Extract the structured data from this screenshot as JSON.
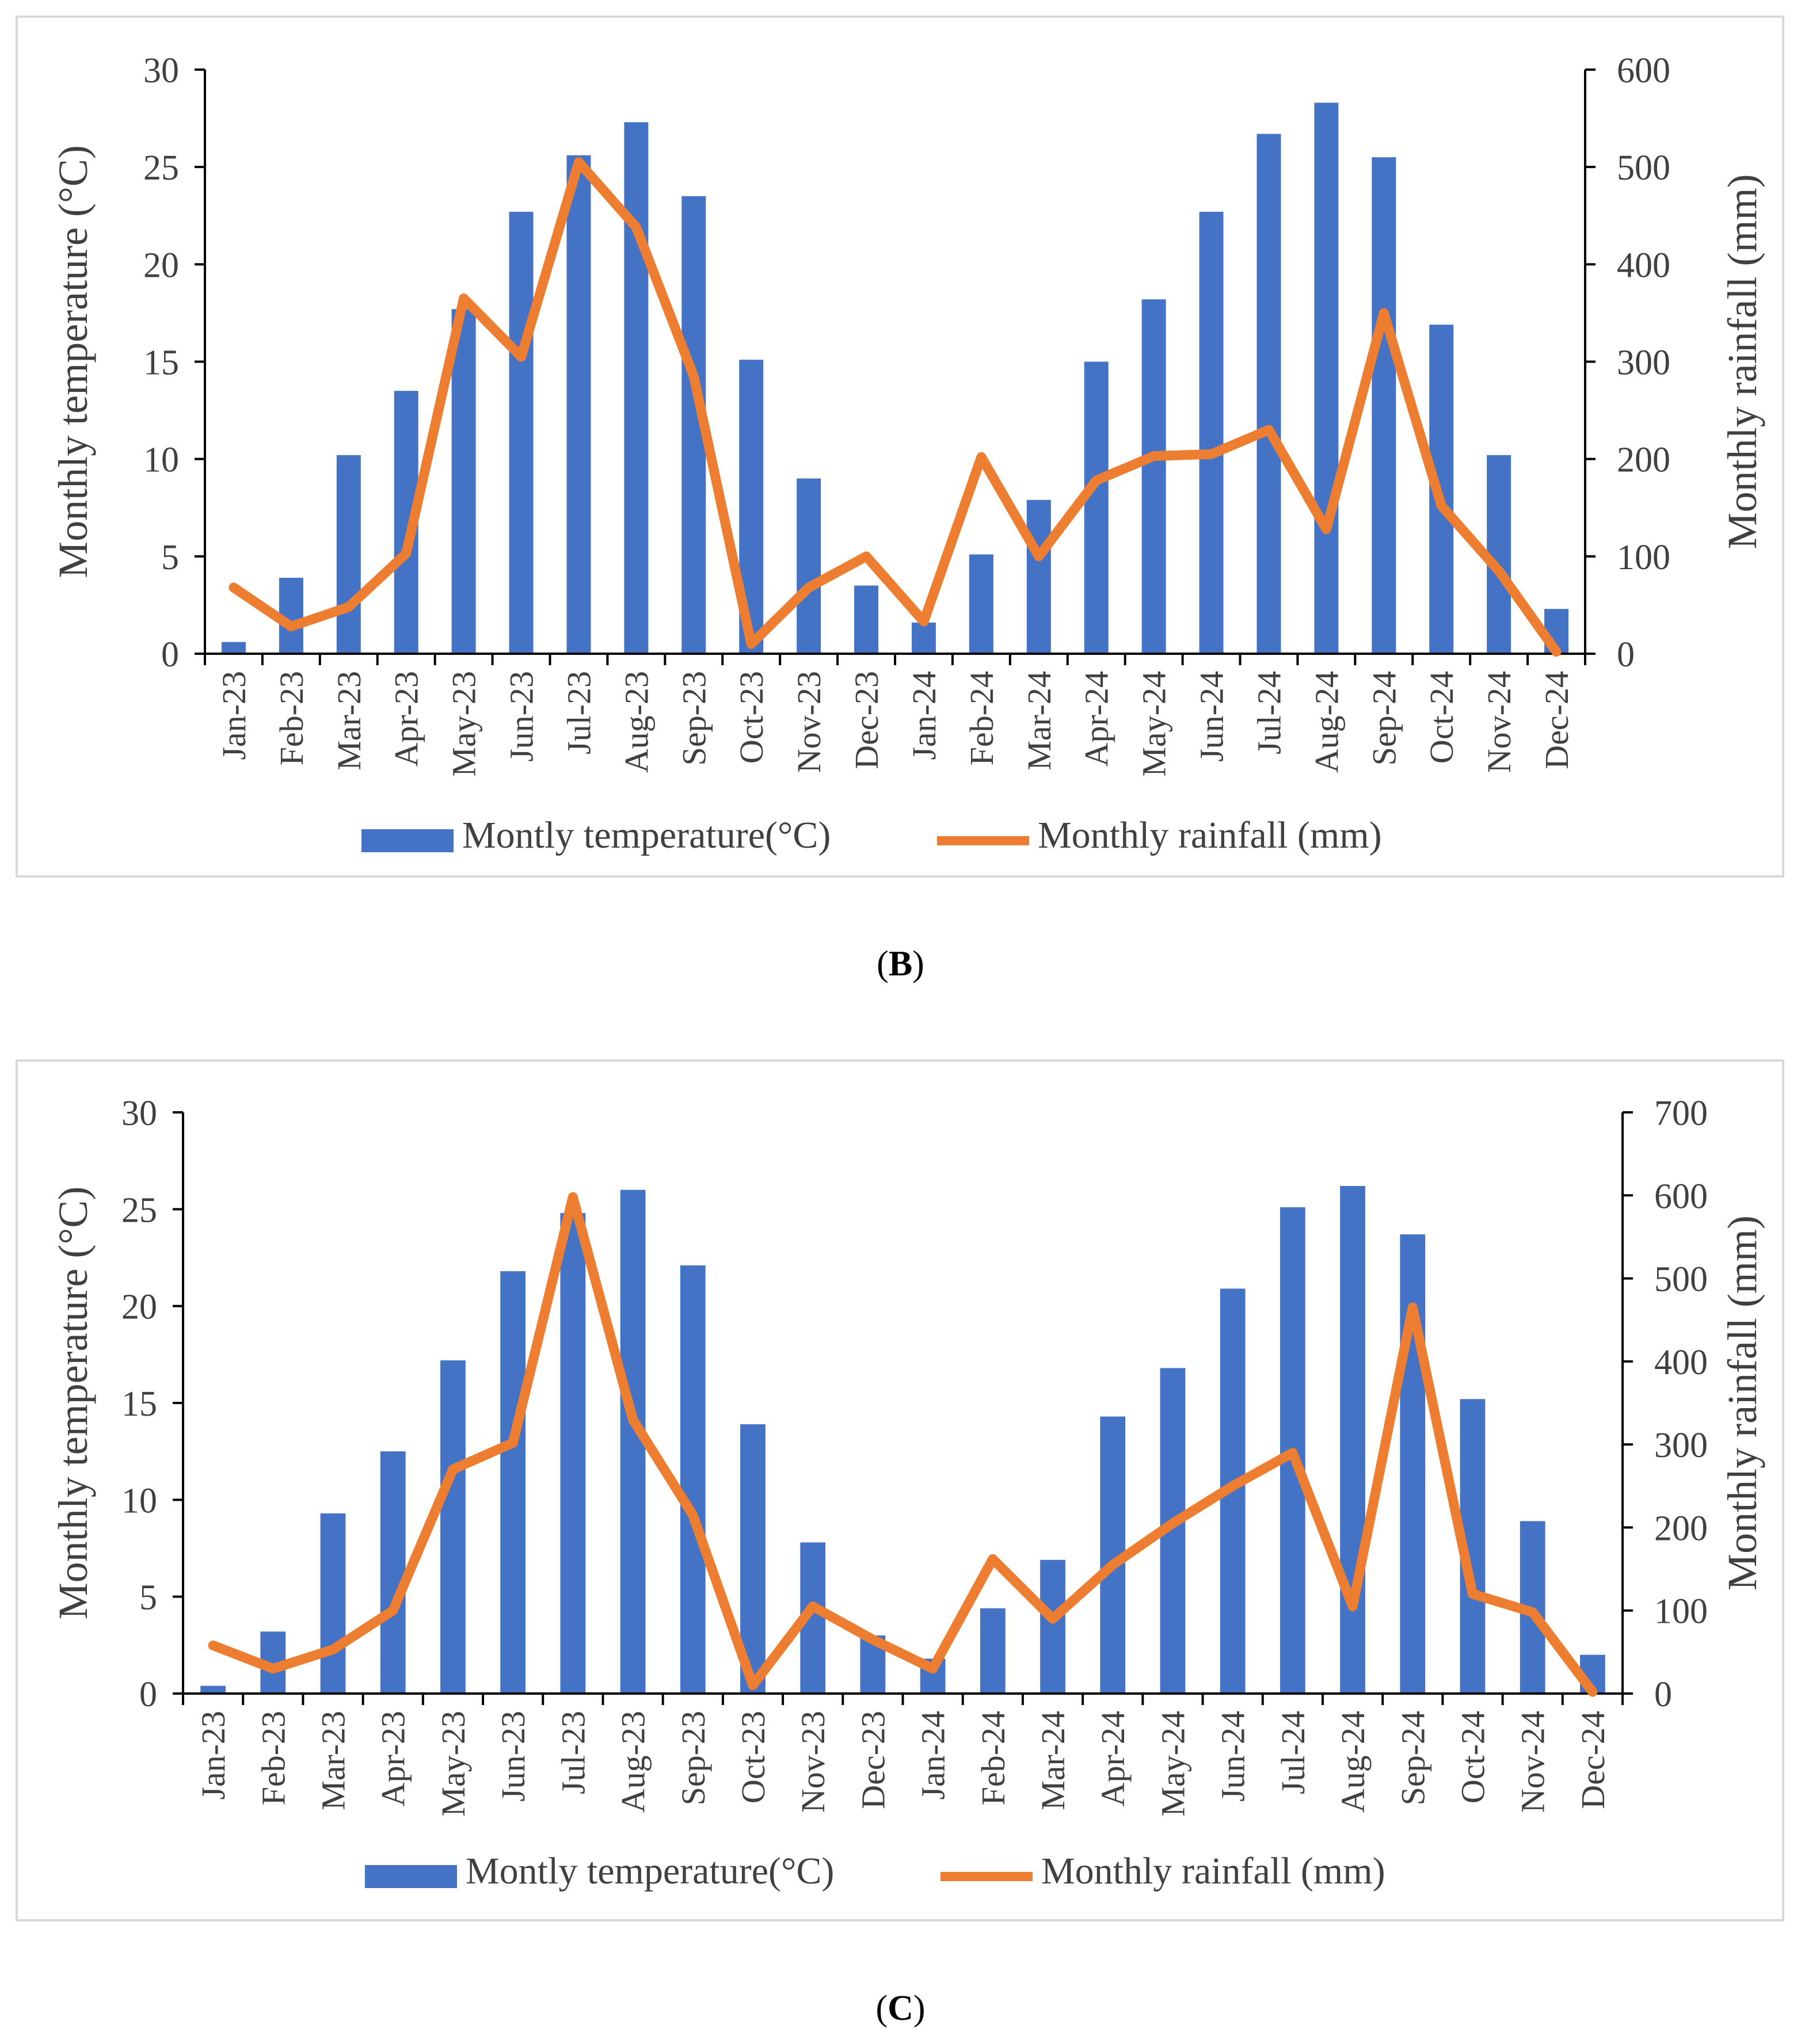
{
  "colors": {
    "temperature": "#4472C4",
    "rainfall": "#ED7D31",
    "axis": "#000000",
    "text": "#404040",
    "border": "#d9d9d9"
  },
  "panels": [
    {
      "caption_letter": "B",
      "chart_data": {
        "type": "bar+line",
        "categories": [
          "Jan-23",
          "Feb-23",
          "Mar-23",
          "Apr-23",
          "May-23",
          "Jun-23",
          "Jul-23",
          "Aug-23",
          "Sep-23",
          "Oct-23",
          "Nov-23",
          "Dec-23",
          "Jan-24",
          "Feb-24",
          "Mar-24",
          "Apr-24",
          "May-24",
          "Jun-24",
          "Jul-24",
          "Aug-24",
          "Sep-24",
          "Oct-24",
          "Nov-24",
          "Dec-24"
        ],
        "ylabel": "Monthly temperature (°C)",
        "y2label": "Monthly rainfall (mm)",
        "ylim": [
          0,
          30
        ],
        "yticks": [
          0,
          5,
          10,
          15,
          20,
          25,
          30
        ],
        "y2lim": [
          0,
          600
        ],
        "y2ticks": [
          0,
          100,
          200,
          300,
          400,
          500,
          600
        ],
        "legend_position": "bottom",
        "series": [
          {
            "name": "Montly temperature(°C)",
            "type": "bar",
            "axis": "left",
            "values": [
              0.6,
              3.9,
              10.2,
              13.5,
              17.7,
              22.7,
              25.6,
              27.3,
              23.5,
              15.1,
              9.0,
              3.5,
              1.6,
              5.1,
              7.9,
              15.0,
              18.2,
              22.7,
              26.7,
              28.3,
              25.5,
              16.9,
              10.2,
              2.3
            ]
          },
          {
            "name": "Monthly rainfall (mm)",
            "type": "line",
            "axis": "right",
            "values": [
              68,
              28,
              48,
              103,
              365,
              305,
              505,
              438,
              285,
              10,
              68,
              100,
              33,
              202,
              100,
              178,
              203,
              205,
              230,
              128,
              350,
              152,
              85,
              2
            ]
          }
        ]
      }
    },
    {
      "caption_letter": "C",
      "chart_data": {
        "type": "bar+line",
        "categories": [
          "Jan-23",
          "Feb-23",
          "Mar-23",
          "Apr-23",
          "May-23",
          "Jun-23",
          "Jul-23",
          "Aug-23",
          "Sep-23",
          "Oct-23",
          "Nov-23",
          "Dec-23",
          "Jan-24",
          "Feb-24",
          "Mar-24",
          "Apr-24",
          "May-24",
          "Jun-24",
          "Jul-24",
          "Aug-24",
          "Sep-24",
          "Oct-24",
          "Nov-24",
          "Dec-24"
        ],
        "ylabel": "Monthly temperature (°C)",
        "y2label": "Monthly rainfall (mm)",
        "ylim": [
          0,
          30
        ],
        "yticks": [
          0,
          5,
          10,
          15,
          20,
          25,
          30
        ],
        "y2lim": [
          0,
          700
        ],
        "y2ticks": [
          0,
          100,
          200,
          300,
          400,
          500,
          600,
          700
        ],
        "legend_position": "bottom",
        "series": [
          {
            "name": "Montly temperature(°C)",
            "type": "bar",
            "axis": "left",
            "values": [
              0.4,
              3.2,
              9.3,
              12.5,
              17.2,
              21.8,
              24.8,
              26.0,
              22.1,
              13.9,
              7.8,
              3.0,
              1.8,
              4.4,
              6.9,
              14.3,
              16.8,
              20.9,
              25.1,
              26.2,
              23.7,
              15.2,
              8.9,
              2.0
            ]
          },
          {
            "name": "Monthly rainfall (mm)",
            "type": "line",
            "axis": "right",
            "values": [
              58,
              30,
              53,
              100,
              270,
              302,
              598,
              330,
              215,
              10,
              105,
              65,
              30,
              162,
              90,
              155,
              205,
              250,
              290,
              105,
              465,
              120,
              98,
              2
            ]
          }
        ]
      }
    }
  ]
}
